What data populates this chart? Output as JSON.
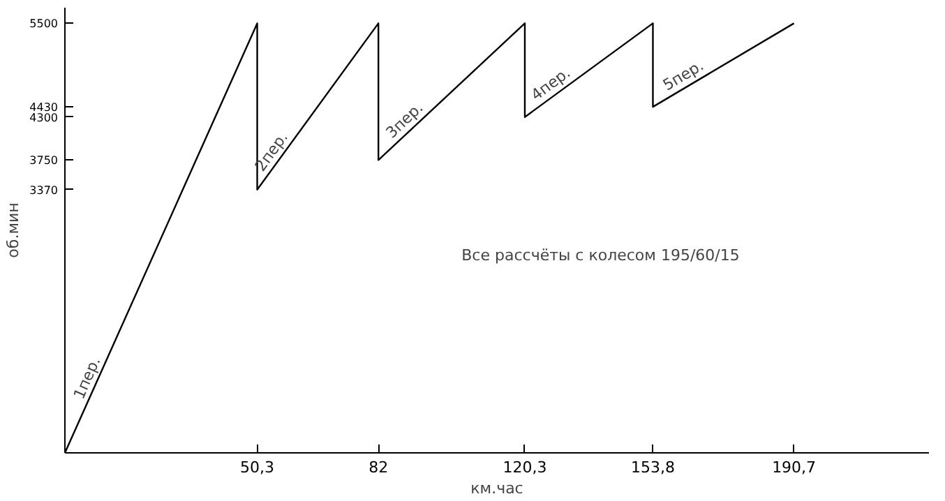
{
  "chart_data": {
    "type": "line",
    "xlabel": "км.час",
    "ylabel": "об.мин",
    "x": [
      0,
      50.3,
      50.3,
      82,
      82,
      120.3,
      120.3,
      153.8,
      153.8,
      190.7
    ],
    "series": [
      {
        "color": "#000000",
        "values": [
          0,
          5500,
          3370,
          5500,
          3750,
          5500,
          4300,
          5500,
          4430,
          5500
        ]
      }
    ],
    "xlim": [
      0,
      226
    ],
    "ylim": [
      0,
      5700
    ],
    "xticks": [
      {
        "value": 50.3,
        "label": "50,3"
      },
      82,
      {
        "value": 120.3,
        "label": "120,3"
      },
      {
        "value": 153.8,
        "label": "153,8"
      },
      {
        "value": 190.7,
        "label": "190,7"
      }
    ],
    "yticks": [
      3370,
      3750,
      4300,
      4430,
      5500
    ],
    "grid": false,
    "marker": "none",
    "line_style": "solid",
    "annotations": [
      {
        "text": "1пер.",
        "x": 8,
        "y": 875
      },
      {
        "text": "2пер.",
        "x": 56,
        "y": 3753
      },
      {
        "text": "3пер.",
        "x": 90.5,
        "y": 4138
      },
      {
        "text": "4пер.",
        "x": 128.5,
        "y": 4594
      },
      {
        "text": "5пер.",
        "x": 163,
        "y": 4697
      },
      "Все рассчёты с колесом 195/60/15"
    ]
  }
}
